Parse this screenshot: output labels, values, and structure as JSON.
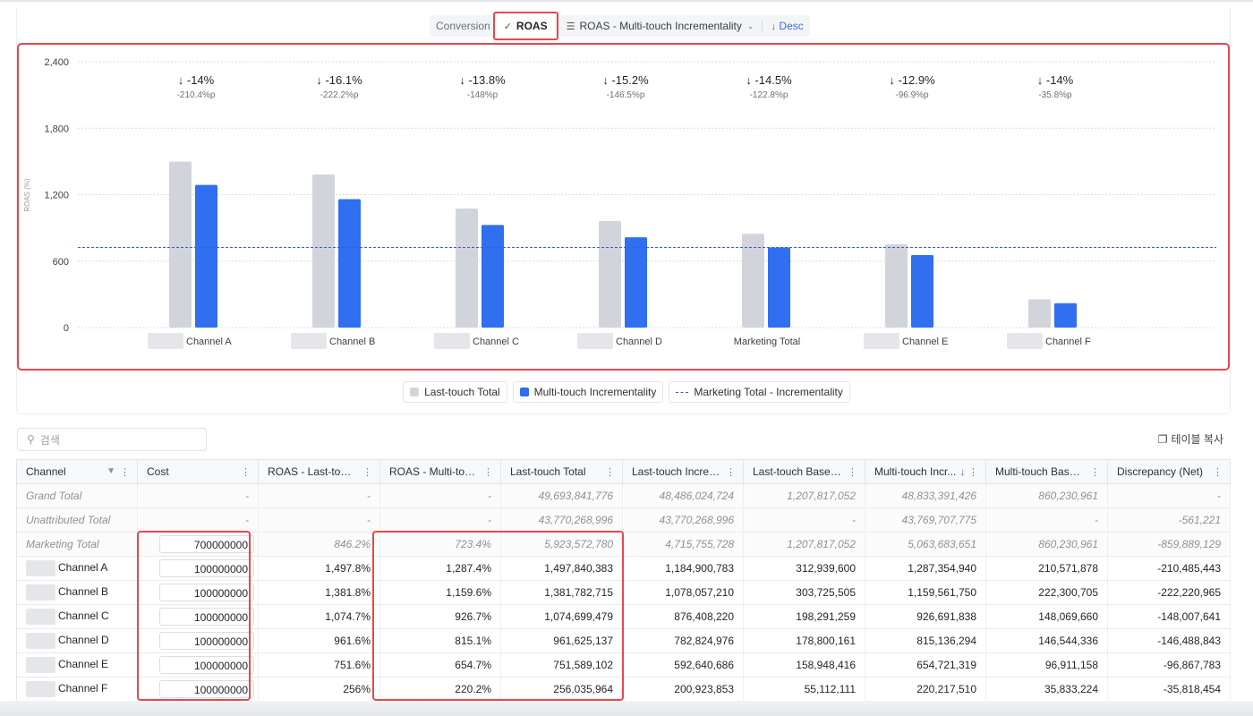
{
  "toolbar": {
    "conversion_label": "Conversion",
    "roas_label": "ROAS",
    "sort_label": "ROAS - Multi-touch Incrementality",
    "desc_label": "Desc"
  },
  "legend": {
    "last_touch": "Last-touch Total",
    "multi_touch": "Multi-touch Incrementality",
    "marketing_line": "Marketing Total - Incrementality"
  },
  "colors": {
    "last_touch": "#d1d5db",
    "multi_touch": "#2f6ff0",
    "marketing_line": "#3b5bdb",
    "highlight": "#e5484d"
  },
  "chart_data": {
    "type": "bar",
    "ylabel": "ROAS (%)",
    "ylim": [
      0,
      2400
    ],
    "yticks": [
      "2,400",
      "1,800",
      "1,200",
      "600",
      "0"
    ],
    "categories": [
      "Channel A",
      "Channel B",
      "Channel C",
      "Channel D",
      "Marketing Total",
      "Channel E",
      "Channel F"
    ],
    "series": [
      {
        "name": "Last-touch Total",
        "values": [
          1497.8,
          1381.8,
          1074.7,
          961.6,
          846.2,
          751.6,
          256
        ]
      },
      {
        "name": "Multi-touch Incrementality",
        "values": [
          1287.4,
          1159.6,
          926.7,
          815.1,
          723.4,
          654.7,
          220.2
        ]
      }
    ],
    "reference_line": {
      "name": "Marketing Total - Incrementality",
      "value": 723.4
    },
    "annotations": [
      {
        "pct": "-14%",
        "pp": "-210.4%p"
      },
      {
        "pct": "-16.1%",
        "pp": "-222.2%p"
      },
      {
        "pct": "-13.8%",
        "pp": "-148%p"
      },
      {
        "pct": "-15.2%",
        "pp": "-146.5%p"
      },
      {
        "pct": "-14.5%",
        "pp": "-122.8%p"
      },
      {
        "pct": "-12.9%",
        "pp": "-96.9%p"
      },
      {
        "pct": "-14%",
        "pp": "-35.8%p"
      }
    ],
    "grid": true,
    "legend_position": "bottom"
  },
  "search": {
    "placeholder": "검색"
  },
  "copy_label": "테이블 복사",
  "table": {
    "headers": [
      "Channel",
      "Cost",
      "ROAS - Last-touch ...",
      "ROAS - Multi-touc...",
      "Last-touch Total",
      "Last-touch Increm...",
      "Last-touch Baseline",
      "Multi-touch Incr...",
      "Multi-touch Baseline",
      "Discrepancy (Net)"
    ],
    "summary_rows": [
      {
        "cells": [
          "Grand Total",
          "-",
          "-",
          "-",
          "49,693,841,776",
          "48,486,024,724",
          "1,207,817,052",
          "48,833,391,426",
          "860,230,961",
          "-"
        ]
      },
      {
        "cells": [
          "Unattributed Total",
          "-",
          "-",
          "-",
          "43,770,268,996",
          "43,770,268,996",
          "-",
          "43,769,707,775",
          "-",
          "-561,221"
        ]
      }
    ],
    "marketing_row": {
      "cells": [
        "Marketing Total",
        "700000000",
        "846.2%",
        "723.4%",
        "5,923,572,780",
        "4,715,755,728",
        "1,207,817,052",
        "5,063,683,651",
        "860,230,961",
        "-859,889,129"
      ]
    },
    "rows": [
      {
        "cells": [
          "Channel A",
          "100000000",
          "1,497.8%",
          "1,287.4%",
          "1,497,840,383",
          "1,184,900,783",
          "312,939,600",
          "1,287,354,940",
          "210,571,878",
          "-210,485,443"
        ]
      },
      {
        "cells": [
          "Channel B",
          "100000000",
          "1,381.8%",
          "1,159.6%",
          "1,381,782,715",
          "1,078,057,210",
          "303,725,505",
          "1,159,561,750",
          "222,300,705",
          "-222,220,965"
        ]
      },
      {
        "cells": [
          "Channel C",
          "100000000",
          "1,074.7%",
          "926.7%",
          "1,074,699,479",
          "876,408,220",
          "198,291,259",
          "926,691,838",
          "148,069,660",
          "-148,007,641"
        ]
      },
      {
        "cells": [
          "Channel D",
          "100000000",
          "961.6%",
          "815.1%",
          "961,625,137",
          "782,824,976",
          "178,800,161",
          "815,136,294",
          "146,544,336",
          "-146,488,843"
        ]
      },
      {
        "cells": [
          "Channel E",
          "100000000",
          "751.6%",
          "654.7%",
          "751,589,102",
          "592,640,686",
          "158,948,416",
          "654,721,319",
          "96,911,158",
          "-96,867,783"
        ]
      },
      {
        "cells": [
          "Channel F",
          "100000000",
          "256%",
          "220.2%",
          "256,035,964",
          "200,923,853",
          "55,112,111",
          "220,217,510",
          "35,833,224",
          "-35,818,454"
        ]
      }
    ]
  }
}
